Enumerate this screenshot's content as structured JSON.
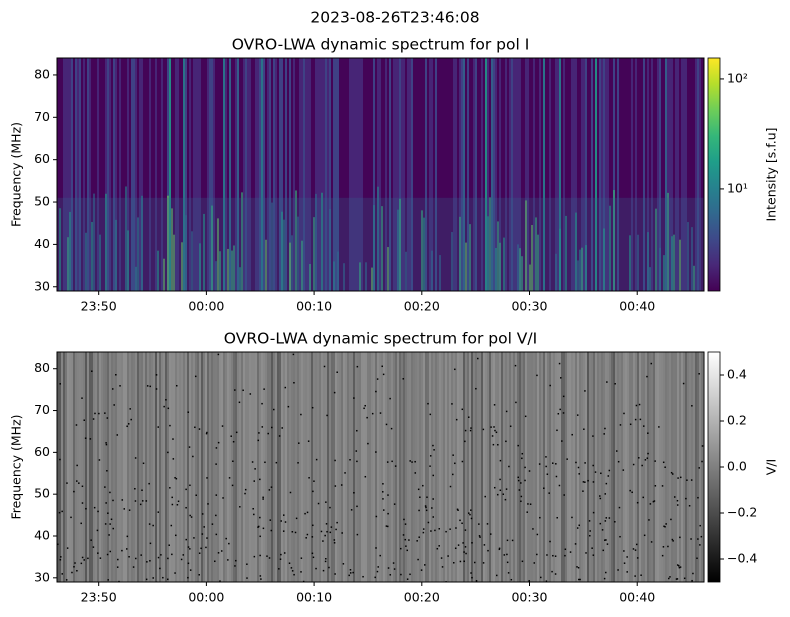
{
  "title": "2023-08-26T23:46:08",
  "chart_data": [
    {
      "type": "heatmap",
      "title": "OVRO-LWA dynamic spectrum for pol I",
      "ylabel": "Frequency (MHz)",
      "xlim": [
        -13.87,
        46.2
      ],
      "xticks": [
        {
          "value": -10,
          "label": "23:50"
        },
        {
          "value": 0,
          "label": "00:00"
        },
        {
          "value": 10,
          "label": "00:10"
        },
        {
          "value": 20,
          "label": "00:20"
        },
        {
          "value": 30,
          "label": "00:30"
        },
        {
          "value": 40,
          "label": "00:40"
        }
      ],
      "ylim": [
        29,
        84
      ],
      "yticks": [
        30,
        40,
        50,
        60,
        70,
        80
      ],
      "colorbar": {
        "label": "Intensity [s.f.u]",
        "scale": "log",
        "cmap": "viridis",
        "lim": [
          1.18,
          155
        ],
        "ticks": [
          {
            "value": 10,
            "label": "10¹"
          },
          {
            "value": 100,
            "label": "10²"
          }
        ]
      }
    },
    {
      "type": "heatmap",
      "title": "OVRO-LWA dynamic spectrum for pol V/I",
      "ylabel": "Frequency (MHz)",
      "xlim": [
        -13.87,
        46.2
      ],
      "xticks": [
        {
          "value": -10,
          "label": "23:50"
        },
        {
          "value": 0,
          "label": "00:00"
        },
        {
          "value": 10,
          "label": "00:10"
        },
        {
          "value": 20,
          "label": "00:20"
        },
        {
          "value": 30,
          "label": "00:30"
        },
        {
          "value": 40,
          "label": "00:40"
        }
      ],
      "ylim": [
        29,
        84
      ],
      "yticks": [
        30,
        40,
        50,
        60,
        70,
        80
      ],
      "colorbar": {
        "label": "V/I",
        "scale": "linear",
        "cmap": "gray",
        "lim": [
          -0.5,
          0.5
        ],
        "ticks": [
          {
            "value": -0.4,
            "label": "−0.4"
          },
          {
            "value": -0.2,
            "label": "−0.2"
          },
          {
            "value": 0,
            "label": "0.0"
          },
          0.2,
          0.4
        ]
      }
    }
  ]
}
